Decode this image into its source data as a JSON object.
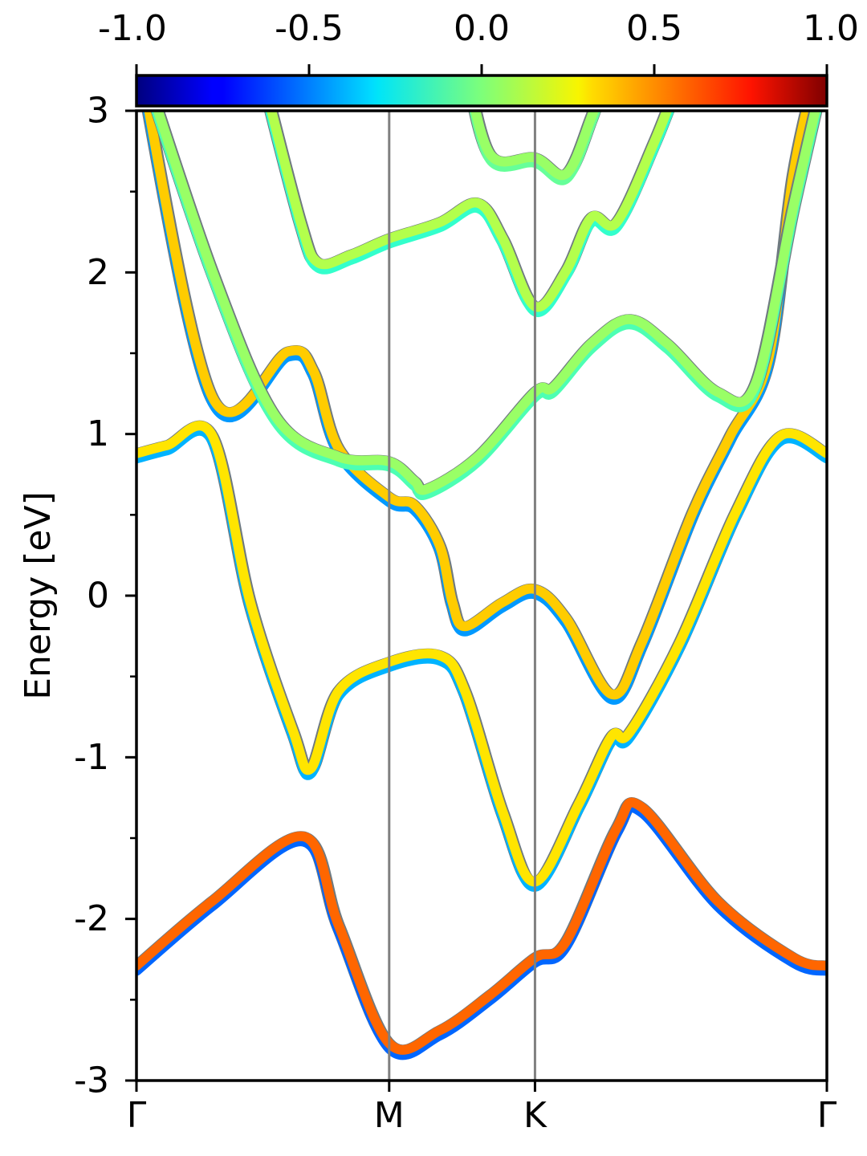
{
  "chart_data": {
    "type": "line",
    "ylabel": "Energy [eV]",
    "ylim": [
      -3,
      3
    ],
    "yticks": [
      "-3",
      "-2",
      "-1",
      "0",
      "1",
      "2",
      "3"
    ],
    "yticks_values": [
      -3,
      -2,
      -1,
      0,
      1,
      2,
      3
    ],
    "xticks": [
      "Γ",
      "M",
      "K",
      "Γ"
    ],
    "xticks_values": [
      0,
      1,
      1.577,
      2.732
    ],
    "vlines_at": [
      1,
      1.577
    ],
    "colorbar": {
      "range": [
        -1,
        1
      ],
      "ticks": [
        "-1.0",
        "-0.5",
        "0.0",
        "0.5",
        "1.0"
      ],
      "ticks_values": [
        -1,
        -0.5,
        0,
        0.5,
        1
      ],
      "colormap": "jet",
      "placement": "top"
    },
    "series": [
      {
        "points": [
          [
            0,
            0.87
          ],
          [
            0.12,
            0.92
          ],
          [
            0.3,
            0.98
          ],
          [
            0.45,
            -0.05
          ],
          [
            0.62,
            -0.85
          ],
          [
            0.69,
            -1.08
          ],
          [
            0.8,
            -0.6
          ],
          [
            1,
            -0.42
          ],
          [
            1.2,
            -0.38
          ],
          [
            1.3,
            -0.6
          ],
          [
            1.45,
            -1.35
          ],
          [
            1.577,
            -1.78
          ],
          [
            1.75,
            -1.3
          ],
          [
            1.88,
            -0.88
          ],
          [
            1.95,
            -0.86
          ],
          [
            2.15,
            -0.3
          ],
          [
            2.37,
            0.5
          ],
          [
            2.55,
            0.98
          ],
          [
            2.732,
            0.87
          ]
        ],
        "spin": 0.3,
        "spin_lower": -0.4
      },
      {
        "points": [
          [
            0,
            -2.3
          ],
          [
            0.3,
            -1.9
          ],
          [
            0.66,
            -1.5
          ],
          [
            0.8,
            -2.05
          ],
          [
            1,
            -2.78
          ],
          [
            1.2,
            -2.7
          ],
          [
            1.4,
            -2.48
          ],
          [
            1.577,
            -2.25
          ],
          [
            1.7,
            -2.15
          ],
          [
            1.9,
            -1.45
          ],
          [
            2.0,
            -1.32
          ],
          [
            2.3,
            -1.9
          ],
          [
            2.6,
            -2.25
          ],
          [
            2.732,
            -2.3
          ]
        ],
        "spin": 0.55,
        "spin_lower": -0.55
      },
      {
        "points": [
          [
            0,
            3.4
          ],
          [
            0.3,
            1.22
          ],
          [
            0.6,
            1.5
          ],
          [
            0.7,
            1.38
          ],
          [
            0.8,
            0.9
          ],
          [
            1,
            0.6
          ],
          [
            1.1,
            0.55
          ],
          [
            1.2,
            0.3
          ],
          [
            1.25,
            -0.05
          ],
          [
            1.3,
            -0.2
          ],
          [
            1.45,
            -0.05
          ],
          [
            1.577,
            0.03
          ],
          [
            1.7,
            -0.15
          ],
          [
            1.88,
            -0.62
          ],
          [
            2.0,
            -0.3
          ],
          [
            2.2,
            0.5
          ],
          [
            2.35,
            0.98
          ],
          [
            2.5,
            1.45
          ],
          [
            2.6,
            2.6
          ],
          [
            2.7,
            3.3
          ]
        ],
        "spin": 0.35,
        "spin_lower": -0.45
      },
      {
        "points": [
          [
            0,
            3.4
          ],
          [
            0.3,
            2.0
          ],
          [
            0.55,
            1.1
          ],
          [
            0.8,
            0.85
          ],
          [
            1,
            0.82
          ],
          [
            1.1,
            0.7
          ],
          [
            1.15,
            0.65
          ],
          [
            1.35,
            0.85
          ],
          [
            1.577,
            1.25
          ],
          [
            1.65,
            1.28
          ],
          [
            1.8,
            1.55
          ],
          [
            1.95,
            1.7
          ],
          [
            2.1,
            1.55
          ],
          [
            2.3,
            1.25
          ],
          [
            2.45,
            1.3
          ],
          [
            2.6,
            2.4
          ],
          [
            2.732,
            3.3
          ]
        ],
        "spin": 0.05,
        "spin_lower": -0.1
      },
      {
        "points": [
          [
            0.5,
            3.2
          ],
          [
            0.65,
            2.3
          ],
          [
            0.72,
            2.05
          ],
          [
            0.85,
            2.1
          ],
          [
            1,
            2.2
          ],
          [
            1.2,
            2.3
          ],
          [
            1.35,
            2.42
          ],
          [
            1.45,
            2.2
          ],
          [
            1.577,
            1.78
          ],
          [
            1.7,
            2.0
          ],
          [
            1.8,
            2.33
          ],
          [
            1.9,
            2.3
          ],
          [
            2.05,
            2.8
          ],
          [
            2.15,
            3.2
          ]
        ],
        "spin": 0.1,
        "spin_lower": -0.15
      },
      {
        "points": [
          [
            1.3,
            3.3
          ],
          [
            1.4,
            2.72
          ],
          [
            1.577,
            2.7
          ],
          [
            1.7,
            2.6
          ],
          [
            1.8,
            2.95
          ],
          [
            1.85,
            3.2
          ]
        ],
        "spin": 0.05,
        "spin_lower": -0.05
      }
    ]
  }
}
